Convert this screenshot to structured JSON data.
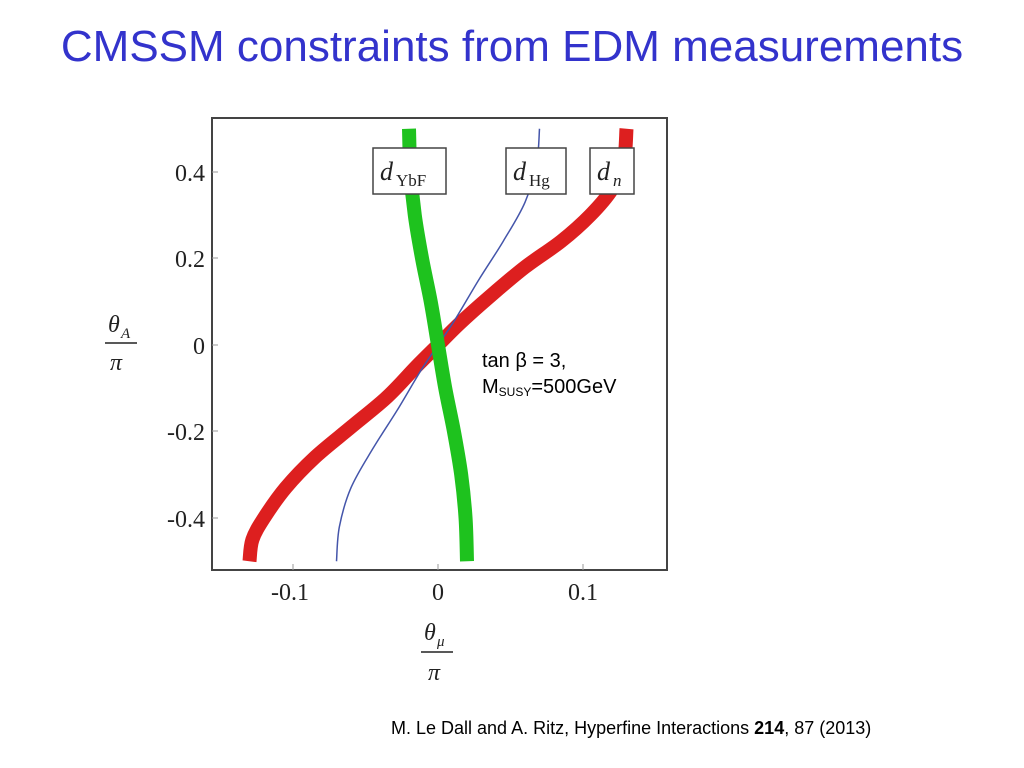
{
  "slide": {
    "title": "CMSSM constraints from EDM measurements",
    "annotation": {
      "line1": "tan β = 3,",
      "m_label": "M",
      "m_sub": "SUSY",
      "m_value": "=500GeV"
    },
    "citation": {
      "pre": "M. Le Dall and A. Ritz, Hyperfine Interactions ",
      "volume": "214",
      "post": ", 87 (2013)"
    },
    "title_color": "#3333cc"
  },
  "chart_data": {
    "type": "line",
    "title": "",
    "xlabel": "θ_μ / π",
    "ylabel": "θ_A / π",
    "xlim": [
      -0.155,
      0.16
    ],
    "ylim": [
      -0.52,
      0.52
    ],
    "x_ticks": [
      "-0.1",
      "0",
      "0.1"
    ],
    "y_ticks": [
      "0.4",
      "0.2",
      "0",
      "-0.2",
      "-0.4"
    ],
    "grid": false,
    "legend": "inline boxed labels at top of plot",
    "series": [
      {
        "name": "d_n",
        "label_main": "d",
        "label_sub": "n",
        "color": "#dd1f1f",
        "style": "thick band",
        "points": [
          [
            -0.13,
            -0.5
          ],
          [
            -0.128,
            -0.45
          ],
          [
            -0.12,
            -0.4
          ],
          [
            -0.105,
            -0.33
          ],
          [
            -0.085,
            -0.26
          ],
          [
            -0.06,
            -0.19
          ],
          [
            -0.035,
            -0.12
          ],
          [
            -0.015,
            -0.05
          ],
          [
            0.0,
            0.0
          ],
          [
            0.015,
            0.05
          ],
          [
            0.035,
            0.11
          ],
          [
            0.06,
            0.18
          ],
          [
            0.085,
            0.24
          ],
          [
            0.105,
            0.3
          ],
          [
            0.12,
            0.36
          ],
          [
            0.128,
            0.42
          ],
          [
            0.13,
            0.5
          ]
        ]
      },
      {
        "name": "d_Hg",
        "label_main": "d",
        "label_sub": "Hg",
        "color": "#4455aa",
        "style": "thin line",
        "points": [
          [
            -0.07,
            -0.5
          ],
          [
            -0.068,
            -0.42
          ],
          [
            -0.06,
            -0.33
          ],
          [
            -0.045,
            -0.24
          ],
          [
            -0.028,
            -0.15
          ],
          [
            -0.012,
            -0.06
          ],
          [
            0.0,
            0.0
          ],
          [
            0.012,
            0.06
          ],
          [
            0.028,
            0.15
          ],
          [
            0.045,
            0.24
          ],
          [
            0.06,
            0.33
          ],
          [
            0.068,
            0.42
          ],
          [
            0.07,
            0.5
          ]
        ]
      },
      {
        "name": "d_YbF",
        "label_main": "d",
        "label_sub": "YbF",
        "color": "#1ec21e",
        "style": "thick band",
        "points": [
          [
            -0.02,
            0.5
          ],
          [
            -0.019,
            0.4
          ],
          [
            -0.016,
            0.3
          ],
          [
            -0.011,
            0.2
          ],
          [
            -0.005,
            0.1
          ],
          [
            0.0,
            0.0
          ],
          [
            0.005,
            -0.1
          ],
          [
            0.011,
            -0.2
          ],
          [
            0.016,
            -0.3
          ],
          [
            0.019,
            -0.4
          ],
          [
            0.02,
            -0.5
          ]
        ]
      }
    ],
    "annotations": [
      "tan β = 3,",
      "M_SUSY=500GeV"
    ]
  }
}
